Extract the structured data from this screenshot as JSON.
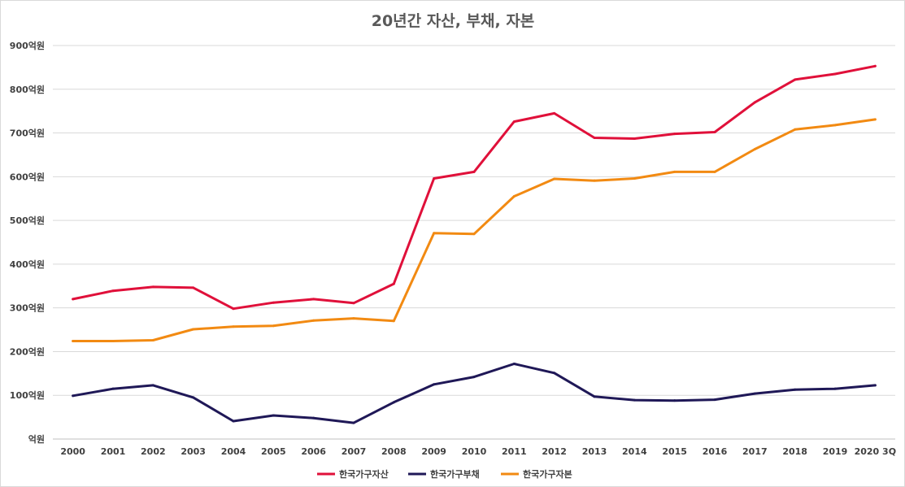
{
  "chart_data": {
    "type": "line",
    "title": "20년간 자산, 부채, 자본",
    "categories": [
      "2000",
      "2001",
      "2002",
      "2003",
      "2004",
      "2005",
      "2006",
      "2007",
      "2008",
      "2009",
      "2010",
      "2011",
      "2012",
      "2013",
      "2014",
      "2015",
      "2016",
      "2017",
      "2018",
      "2019",
      "2020 3Q"
    ],
    "y_tick_labels": [
      "억원",
      "100억원",
      "200억원",
      "300억원",
      "400억원",
      "500억원",
      "600억원",
      "700억원",
      "800억원",
      "900억원"
    ],
    "ylim": [
      0,
      900
    ],
    "grid": true,
    "legend_position": "bottom",
    "series": [
      {
        "name": "한국가구자산",
        "color": "#e0103a",
        "values": [
          320,
          339,
          348,
          346,
          298,
          312,
          320,
          311,
          355,
          596,
          611,
          726,
          745,
          689,
          687,
          698,
          702,
          770,
          822,
          835,
          853
        ]
      },
      {
        "name": "한국가구부채",
        "color": "#1f1857",
        "values": [
          99,
          115,
          123,
          95,
          41,
          54,
          48,
          37,
          84,
          125,
          142,
          172,
          151,
          97,
          89,
          88,
          90,
          104,
          113,
          115,
          123
        ]
      },
      {
        "name": "한국가구자본",
        "color": "#f28a12",
        "values": [
          224,
          224,
          226,
          251,
          257,
          259,
          271,
          276,
          270,
          471,
          469,
          555,
          595,
          591,
          596,
          611,
          611,
          663,
          708,
          718,
          731
        ]
      }
    ]
  }
}
